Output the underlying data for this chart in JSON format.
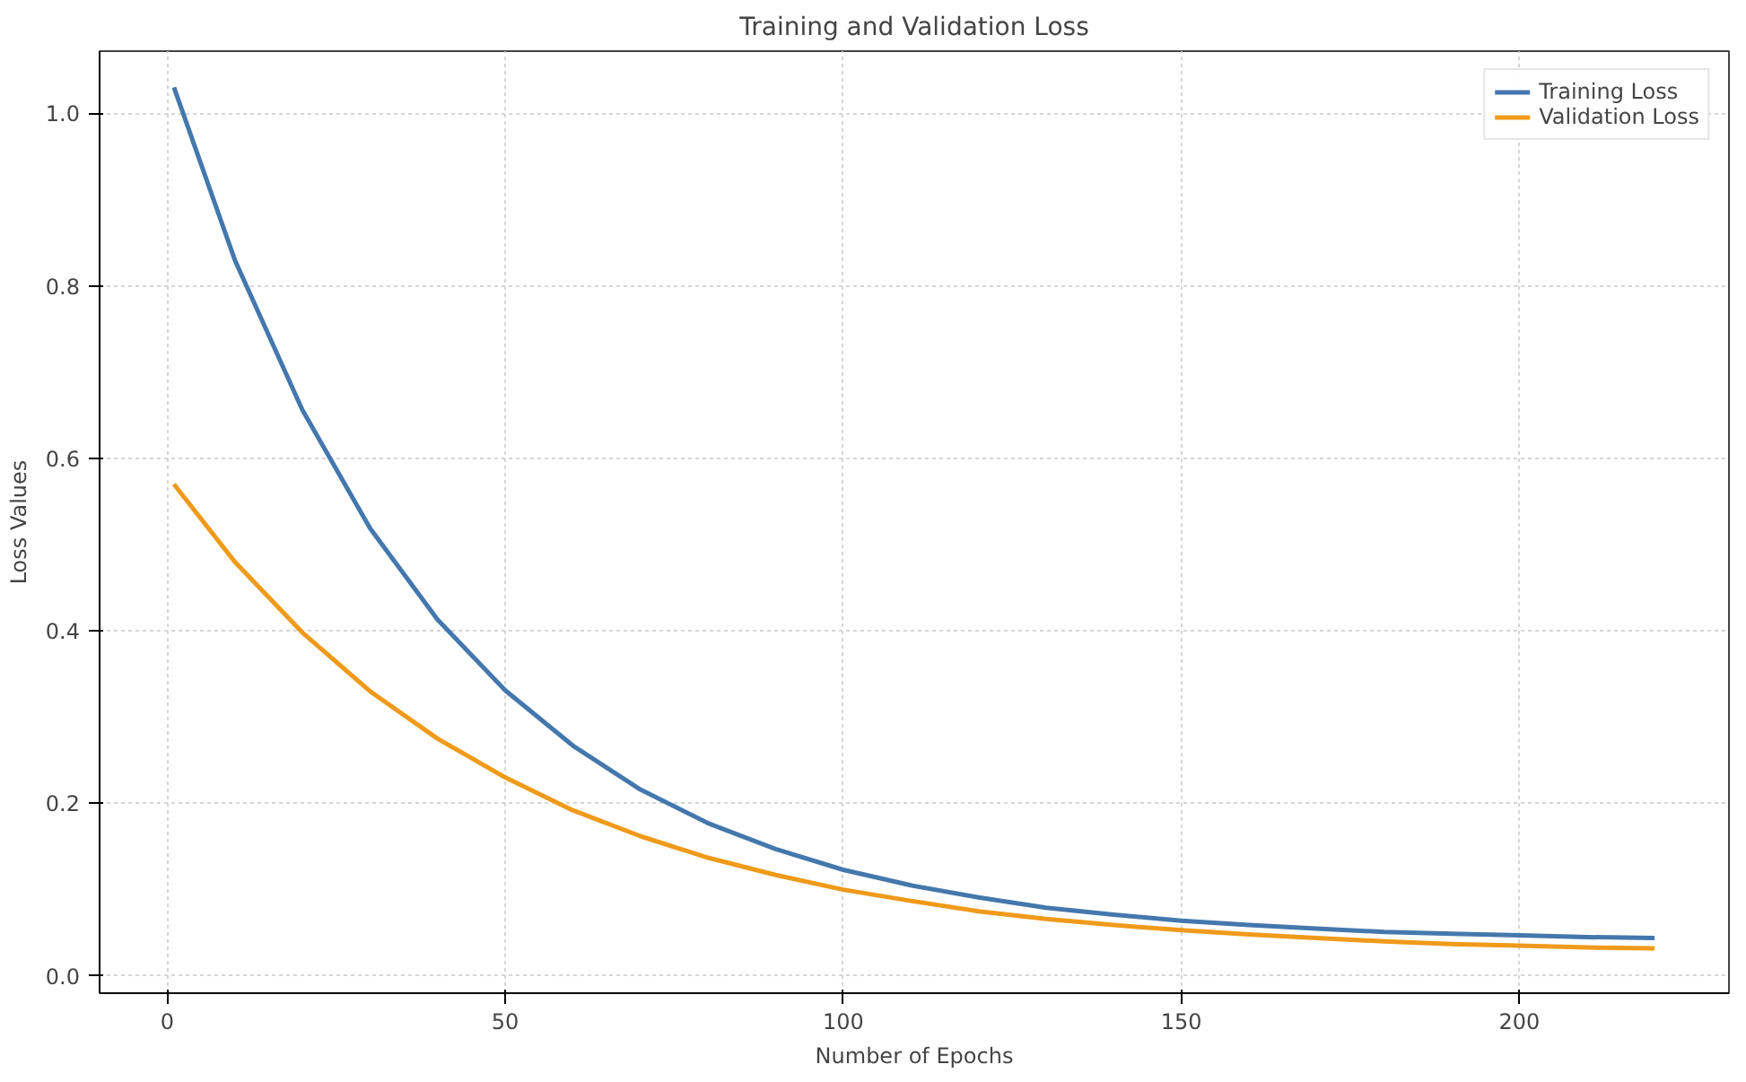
{
  "chart_data": {
    "type": "line",
    "title": "Training and Validation Loss",
    "xlabel": "Number of Epochs",
    "ylabel": "Loss Values",
    "x": [
      1,
      10,
      20,
      30,
      40,
      50,
      60,
      70,
      80,
      90,
      100,
      110,
      120,
      130,
      140,
      150,
      160,
      170,
      180,
      190,
      200,
      210,
      220
    ],
    "series": [
      {
        "name": "Training Loss",
        "color": "#4478ad",
        "values": [
          1.03,
          0.83,
          0.656,
          0.519,
          0.413,
          0.331,
          0.267,
          0.216,
          0.177,
          0.147,
          0.123,
          0.105,
          0.091,
          0.079,
          0.071,
          0.064,
          0.059,
          0.055,
          0.051,
          0.049,
          0.047,
          0.045,
          0.044
        ]
      },
      {
        "name": "Validation Loss",
        "color": "#f09a1a",
        "values": [
          0.57,
          0.48,
          0.398,
          0.33,
          0.275,
          0.23,
          0.192,
          0.162,
          0.137,
          0.117,
          0.1,
          0.087,
          0.075,
          0.066,
          0.059,
          0.053,
          0.048,
          0.044,
          0.04,
          0.037,
          0.035,
          0.033,
          0.032
        ]
      }
    ],
    "xlim": [
      -10,
      231
    ],
    "ylim": [
      -0.02,
      1.072
    ],
    "xticks": [
      0,
      50,
      100,
      150,
      200
    ],
    "yticks": [
      {
        "value": 0,
        "label": "0.0"
      },
      {
        "value": 0.2,
        "label": "0.2"
      },
      {
        "value": 0.4,
        "label": "0.4"
      },
      {
        "value": 0.6,
        "label": "0.6"
      },
      {
        "value": 0.8,
        "label": "0.8"
      },
      {
        "value": 1.0,
        "label": "1.0"
      }
    ],
    "grid": true,
    "legend": "top right",
    "marker": "none",
    "line_style": "solid"
  }
}
